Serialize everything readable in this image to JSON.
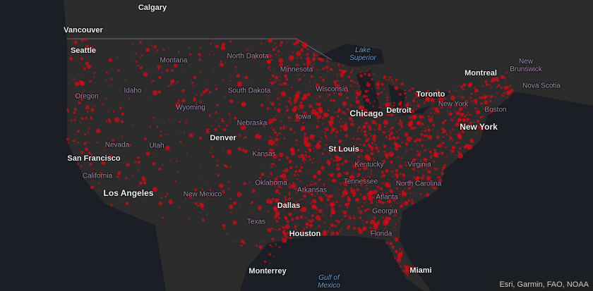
{
  "places": [
    "Calgary",
    "Vancouver",
    "Seattle",
    "Montana",
    "North Dakota",
    "Minnesota",
    "Montreal",
    "New Brunswick",
    "Nova Scotia",
    "Oregon",
    "Idaho",
    "South Dakota",
    "Wisconsin",
    "Toronto",
    "Wyoming",
    "Chicago",
    "Detroit",
    "New York",
    "Boston",
    "Nebraska",
    "Iowa",
    "Denver",
    "New York",
    "Nevada",
    "Utah",
    "San Francisco",
    "Kansas",
    "St Louis",
    "Kentucky",
    "Virginia",
    "California",
    "Oklahoma",
    "Tennessee",
    "North Carolina",
    "Los Angeles",
    "New Mexico",
    "Arkansas",
    "Atlanta",
    "Dallas",
    "Georgia",
    "Texas",
    "Houston",
    "Florida",
    "Monterrey",
    "Miami"
  ],
  "water": [
    "Lake Superior",
    "Gulf of Mexico"
  ],
  "attribution": "Esri, Garmin, FAO, NOAA"
}
